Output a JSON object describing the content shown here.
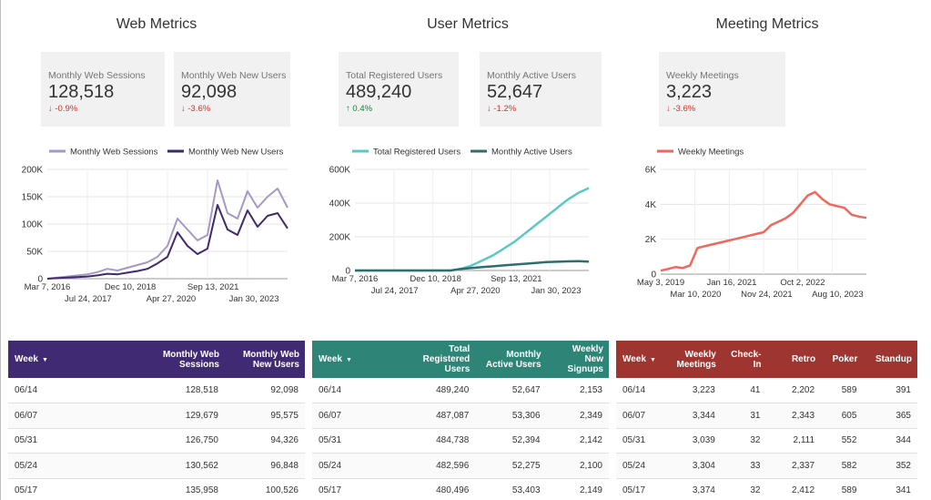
{
  "sections": {
    "web": "Web Metrics",
    "user": "User Metrics",
    "meeting": "Meeting Metrics"
  },
  "cards": [
    {
      "label": "Monthly Web Sessions",
      "value": "128,518",
      "delta": "-0.9%",
      "dir": "down"
    },
    {
      "label": "Monthly Web New Users",
      "value": "92,098",
      "delta": "-3.6%",
      "dir": "down"
    },
    {
      "label": "Total Registered Users",
      "value": "489,240",
      "delta": "0.4%",
      "dir": "up"
    },
    {
      "label": "Monthly Active Users",
      "value": "52,647",
      "delta": "-1.2%",
      "dir": "down"
    },
    {
      "label": "Weekly Meetings",
      "value": "3,223",
      "delta": "-3.6%",
      "dir": "down"
    }
  ],
  "colors": {
    "web_sessions": "#a797c5",
    "web_new_users": "#42286d",
    "registered": "#5bc8c8",
    "active": "#2e6e6e",
    "meetings": "#f2665c",
    "web_header": "#3f2a73",
    "user_header": "#2d8477",
    "meeting_header": "#9e3530"
  },
  "chart_data": [
    {
      "type": "line",
      "legend": "top",
      "x_ticks_row1": [
        "Mar 7, 2016",
        "Dec 10, 2018",
        "Sep 13, 2021"
      ],
      "x_ticks_row2": [
        "Jul 24, 2017",
        "Apr 27, 2020",
        "Jan 30, 2023"
      ],
      "y_ticks": [
        "0",
        "50K",
        "100K",
        "150K",
        "200K"
      ],
      "ylim": [
        0,
        200000
      ],
      "series": [
        {
          "name": "Monthly Web Sessions",
          "values": [
            0,
            2000,
            4000,
            6000,
            8000,
            12000,
            18000,
            15000,
            20000,
            25000,
            30000,
            40000,
            60000,
            110000,
            90000,
            70000,
            80000,
            180000,
            120000,
            110000,
            160000,
            130000,
            150000,
            165000,
            130000
          ]
        },
        {
          "name": "Monthly Web New Users",
          "values": [
            0,
            1000,
            2000,
            3000,
            4000,
            6000,
            9000,
            8000,
            11000,
            14000,
            18000,
            28000,
            40000,
            85000,
            60000,
            45000,
            55000,
            135000,
            90000,
            80000,
            125000,
            95000,
            115000,
            120000,
            92000
          ]
        }
      ]
    },
    {
      "type": "line",
      "legend": "top",
      "x_ticks_row1": [
        "Mar 7, 2016",
        "Dec 10, 2018",
        "Sep 13, 2021"
      ],
      "x_ticks_row2": [
        "Jul 24, 2017",
        "Apr 27, 2020",
        "Jan 30, 2023"
      ],
      "y_ticks": [
        "0",
        "200K",
        "400K",
        "600K"
      ],
      "ylim": [
        0,
        600000
      ],
      "series": [
        {
          "name": "Total Registered Users",
          "values": [
            0,
            0,
            0,
            0,
            0,
            0,
            0,
            0,
            0,
            0,
            10000,
            30000,
            60000,
            90000,
            130000,
            170000,
            220000,
            270000,
            320000,
            370000,
            420000,
            460000,
            489000
          ]
        },
        {
          "name": "Monthly Active Users",
          "values": [
            0,
            0,
            0,
            0,
            0,
            0,
            0,
            0,
            0,
            0,
            10000,
            15000,
            20000,
            25000,
            30000,
            35000,
            40000,
            45000,
            50000,
            52000,
            54000,
            55000,
            52600
          ]
        }
      ]
    },
    {
      "type": "line",
      "legend": "top",
      "x_ticks_row1": [
        "May 3, 2019",
        "Jan 16, 2021",
        "Oct 2, 2022"
      ],
      "x_ticks_row2": [
        "Mar 10, 2020",
        "Nov 24, 2021",
        "Aug 10, 2023"
      ],
      "y_ticks": [
        "0",
        "2K",
        "4K",
        "6K"
      ],
      "ylim": [
        0,
        6000
      ],
      "series": [
        {
          "name": "Weekly Meetings",
          "values": [
            200,
            300,
            400,
            350,
            500,
            1500,
            1600,
            1700,
            1800,
            1900,
            2000,
            2100,
            2200,
            2300,
            2400,
            2800,
            3000,
            3200,
            3500,
            4000,
            4500,
            4700,
            4300,
            4000,
            3900,
            3800,
            3400,
            3300,
            3223
          ]
        }
      ]
    }
  ],
  "tables": {
    "web": {
      "headers": [
        "Week",
        "Monthly Web Sessions",
        "Monthly Web New Users"
      ],
      "rows": [
        [
          "06/14",
          "128,518",
          "92,098"
        ],
        [
          "06/07",
          "129,679",
          "95,575"
        ],
        [
          "05/31",
          "126,750",
          "94,326"
        ],
        [
          "05/24",
          "130,562",
          "96,848"
        ],
        [
          "05/17",
          "135,958",
          "100,526"
        ]
      ]
    },
    "user": {
      "headers": [
        "Week",
        "Total Registered Users",
        "Monthly Active Users",
        "Weekly New Signups"
      ],
      "rows": [
        [
          "06/14",
          "489,240",
          "52,647",
          "2,153"
        ],
        [
          "06/07",
          "487,087",
          "53,306",
          "2,349"
        ],
        [
          "05/31",
          "484,738",
          "52,394",
          "2,142"
        ],
        [
          "05/24",
          "482,596",
          "52,275",
          "2,100"
        ],
        [
          "05/17",
          "480,496",
          "53,403",
          "2,149"
        ]
      ]
    },
    "meeting": {
      "headers": [
        "Week",
        "Weekly Meetings",
        "Check-In",
        "Retro",
        "Poker",
        "Standup"
      ],
      "rows": [
        [
          "06/14",
          "3,223",
          "41",
          "2,202",
          "589",
          "391"
        ],
        [
          "06/07",
          "3,344",
          "31",
          "2,343",
          "605",
          "365"
        ],
        [
          "05/31",
          "3,039",
          "32",
          "2,111",
          "552",
          "344"
        ],
        [
          "05/24",
          "3,304",
          "33",
          "2,337",
          "582",
          "352"
        ],
        [
          "05/17",
          "3,374",
          "32",
          "2,412",
          "589",
          "341"
        ]
      ]
    }
  },
  "sort_icon": "sort-down-icon",
  "trend_icons": {
    "down": "arrow-down-icon",
    "up": "arrow-up-icon"
  }
}
